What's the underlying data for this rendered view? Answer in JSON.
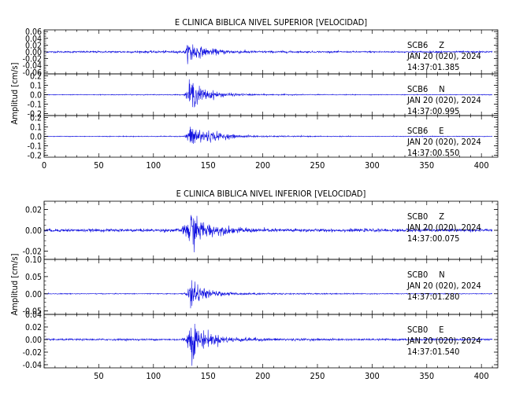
{
  "chart_data": [
    {
      "type": "line",
      "title": "E CLINICA BIBLICA NIVEL SUPERIOR [VELOCIDAD]",
      "ylabel": "Amplitud [cm/s]",
      "xlabel": "",
      "xlim": [
        0,
        415
      ],
      "x_ticks": [
        0,
        50,
        100,
        150,
        200,
        250,
        300,
        350,
        400
      ],
      "x_tick_labels": [
        "0",
        "50",
        "100",
        "150",
        "200",
        "250",
        "300",
        "350",
        "400"
      ],
      "line_color": "#1010e0",
      "grid": false,
      "panels": [
        {
          "station": "SCB6",
          "component": "Z",
          "date": "JAN 20 (020), 2024",
          "time": "14:37:01.385",
          "ylim": [
            -0.065,
            0.065
          ],
          "y_ticks": [
            0.06,
            0.04,
            0.02,
            0.0,
            -0.02,
            -0.04,
            -0.06
          ],
          "y_tick_labels": [
            "0.06",
            "0.04",
            "0.02",
            "0.00",
            "-0.02",
            "-0.04",
            "-0.06"
          ],
          "series": [
            {
              "x": [
                0,
                128,
                130,
                132,
                134,
                136,
                138,
                140,
                145,
                150,
                160,
                170,
                180,
                200,
                250,
                300,
                350,
                410
              ],
              "amplitude": [
                0.002,
                0.003,
                0.01,
                0.025,
                0.04,
                0.03,
                0.022,
                0.016,
                0.012,
                0.009,
                0.007,
                0.005,
                0.004,
                0.003,
                0.002,
                0.002,
                0.002,
                0.002
              ]
            }
          ]
        },
        {
          "station": "SCB6",
          "component": "N",
          "date": "JAN 20 (020), 2024",
          "time": "14:37:00.995",
          "ylim": [
            -0.22,
            0.22
          ],
          "y_ticks": [
            0.2,
            0.1,
            0.0,
            -0.1,
            -0.2
          ],
          "y_tick_labels": [
            "0.2",
            "0.1",
            "0.0",
            "-0.1",
            "-0.2"
          ],
          "series": [
            {
              "x": [
                0,
                128,
                130,
                133,
                135,
                137,
                140,
                145,
                150,
                160,
                170,
                180,
                200,
                250,
                300,
                350,
                410
              ],
              "amplitude": [
                0.003,
                0.004,
                0.03,
                0.12,
                0.15,
                0.11,
                0.09,
                0.06,
                0.045,
                0.025,
                0.015,
                0.01,
                0.006,
                0.004,
                0.003,
                0.003,
                0.003
              ]
            }
          ]
        },
        {
          "station": "SCB6",
          "component": "E",
          "date": "JAN 20 (020), 2024",
          "time": "14:37:00.550",
          "ylim": [
            -0.22,
            0.22
          ],
          "y_ticks": [
            0.2,
            0.1,
            0.0,
            -0.1,
            -0.2
          ],
          "y_tick_labels": [
            "0.2",
            "0.1",
            "0.0",
            "-0.1",
            "-0.2"
          ],
          "series": [
            {
              "x": [
                0,
                128,
                130,
                133,
                136,
                140,
                145,
                150,
                160,
                170,
                180,
                200,
                250,
                300,
                350,
                410
              ],
              "amplitude": [
                0.003,
                0.004,
                0.03,
                0.08,
                0.1,
                0.09,
                0.07,
                0.055,
                0.035,
                0.02,
                0.012,
                0.007,
                0.004,
                0.003,
                0.003,
                0.003
              ]
            }
          ]
        }
      ]
    },
    {
      "type": "line",
      "title": "E CLINICA BIBLICA NIVEL INFERIOR [VELOCIDAD]",
      "ylabel": "Amplitud [cm/s]",
      "xlabel": "",
      "xlim": [
        0,
        415
      ],
      "x_ticks": [
        50,
        100,
        150,
        200,
        250,
        300,
        350,
        400
      ],
      "x_tick_labels": [
        "50",
        "100",
        "150",
        "200",
        "250",
        "300",
        "350",
        "400"
      ],
      "line_color": "#1010e0",
      "grid": false,
      "panels": [
        {
          "station": "SCB0",
          "component": "Z",
          "date": "JAN 20 (020), 2024",
          "time": "14:37:00.075",
          "ylim": [
            -0.028,
            0.028
          ],
          "y_ticks": [
            0.02,
            0.0,
            -0.02
          ],
          "y_tick_labels": [
            "0.02",
            "0.00",
            "-0.02"
          ],
          "series": [
            {
              "x": [
                0,
                100,
                125,
                128,
                131,
                134,
                136,
                138,
                142,
                150,
                160,
                170,
                180,
                200,
                250,
                300,
                350,
                410
              ],
              "amplitude": [
                0.0012,
                0.0012,
                0.0015,
                0.004,
                0.01,
                0.02,
                0.016,
                0.012,
                0.009,
                0.006,
                0.004,
                0.003,
                0.0022,
                0.0016,
                0.0013,
                0.0012,
                0.0012,
                0.0012
              ]
            }
          ]
        },
        {
          "station": "SCB0",
          "component": "N",
          "date": "JAN 20 (020), 2024",
          "time": "14:37:01.280",
          "ylim": [
            -0.06,
            0.1
          ],
          "y_ticks": [
            0.1,
            0.05,
            0.0,
            -0.05
          ],
          "y_tick_labels": [
            "0.10",
            "0.05",
            "0.00",
            "-0.05"
          ],
          "series": [
            {
              "x": [
                0,
                125,
                130,
                133,
                135,
                137,
                140,
                145,
                150,
                160,
                170,
                180,
                200,
                250,
                300,
                350,
                410
              ],
              "amplitude": [
                0.001,
                0.001,
                0.004,
                0.015,
                0.06,
                0.03,
                0.02,
                0.014,
                0.01,
                0.006,
                0.004,
                0.003,
                0.002,
                0.0015,
                0.0012,
                0.001,
                0.001
              ]
            }
          ]
        },
        {
          "station": "SCB0",
          "component": "E",
          "date": "JAN 20 (020), 2024",
          "time": "14:37:01.540",
          "ylim": [
            -0.045,
            0.04
          ],
          "y_ticks": [
            0.04,
            0.02,
            0.0,
            -0.02,
            -0.04
          ],
          "y_tick_labels": [
            "0.04",
            "0.02",
            "0.00",
            "-0.02",
            "-0.04"
          ],
          "series": [
            {
              "x": [
                0,
                125,
                130,
                133,
                135,
                137,
                140,
                145,
                150,
                160,
                170,
                180,
                200,
                250,
                300,
                350,
                410
              ],
              "amplitude": [
                0.0012,
                0.0012,
                0.004,
                0.02,
                0.032,
                0.025,
                0.018,
                0.013,
                0.01,
                0.006,
                0.004,
                0.003,
                0.002,
                0.0015,
                0.0012,
                0.0012,
                0.0012
              ]
            }
          ]
        }
      ]
    }
  ]
}
